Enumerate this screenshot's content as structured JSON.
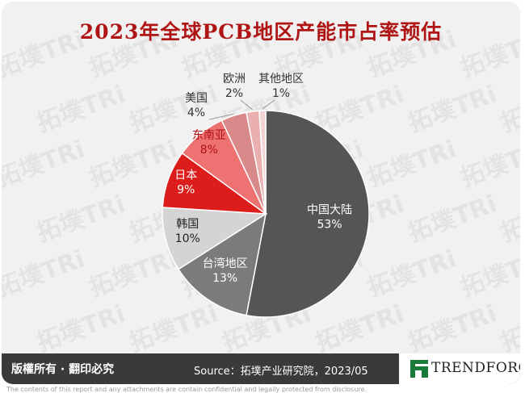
{
  "title": "2023年全球PCB地区产能市占率预估",
  "chart_data": {
    "type": "pie",
    "title": "2023年全球PCB地区产能市占率预估",
    "slices": [
      {
        "label": "中国大陆",
        "value": 53,
        "display": "53%",
        "color": "#555555",
        "text_color": "#ffffff"
      },
      {
        "label": "台湾地区",
        "value": 13,
        "display": "13%",
        "color": "#7b7b7b",
        "text_color": "#ffffff"
      },
      {
        "label": "韩国",
        "value": 10,
        "display": "10%",
        "color": "#d4d4d4",
        "text_color": "#222222"
      },
      {
        "label": "日本",
        "value": 9,
        "display": "9%",
        "color": "#dd1c1c",
        "text_color": "#ffffff"
      },
      {
        "label": "东南亚",
        "value": 8,
        "display": "8%",
        "color": "#ee7272",
        "text_color": "#b01010"
      },
      {
        "label": "美国",
        "value": 4,
        "display": "4%",
        "color": "#d88a8a",
        "text_color": "#333333"
      },
      {
        "label": "欧洲",
        "value": 2,
        "display": "2%",
        "color": "#eab0b0",
        "text_color": "#333333"
      },
      {
        "label": "其他地区",
        "value": 1,
        "display": "1%",
        "color": "#f3d4d4",
        "text_color": "#333333"
      }
    ],
    "start_angle_deg": 0,
    "direction": "clockwise",
    "legend": "none"
  },
  "footer": {
    "rights": "版權所有 · 翻印必究",
    "source": "Source：拓墣产业研究院，2023/05",
    "brand": "TRENDFORCE"
  },
  "disclaimer": "The contents of this report and any attachments are contain confidential and legally protected from disclosure.",
  "watermark": "拓墣TRi"
}
